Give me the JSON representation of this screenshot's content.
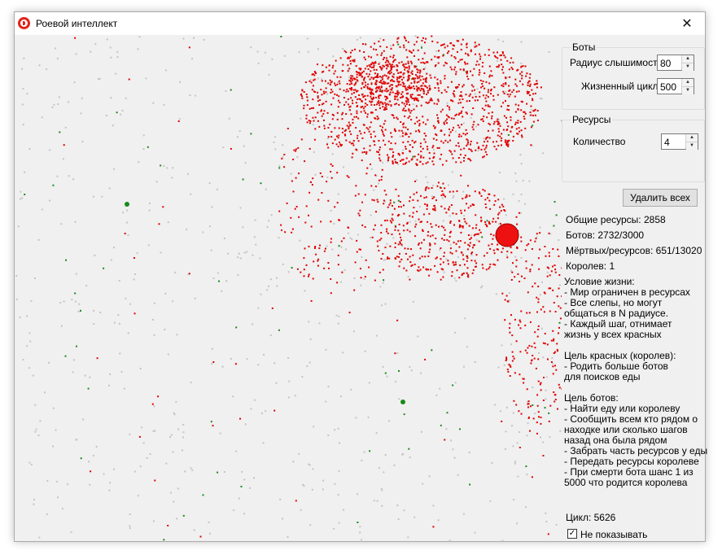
{
  "window": {
    "title": "Роевой интеллект",
    "close_glyph": "✕"
  },
  "bots_group": {
    "title": "Боты",
    "hearing_radius_label": "Радиус слышимости",
    "hearing_radius_value": "80",
    "life_cycle_label": "Жизненный цикл",
    "life_cycle_value": "500"
  },
  "resources_group": {
    "title": "Ресурсы",
    "amount_label": "Количество",
    "amount_value": "4"
  },
  "delete_all_button": "Удалить всех",
  "stats": {
    "total_resources": "Общие ресурсы: 2858",
    "bots": "Ботов: 2732/3000",
    "dead_resources": "Мёртвых/ресурсов: 651/13020",
    "queens": "Королев: 1"
  },
  "description": [
    "Условие жизни:",
    " - Мир ограничен в ресурсах",
    " - Все слепы, но могут",
    "общаться в N радиусе.",
    " - Каждый шаг, отнимает",
    "жизнь у всех красных",
    "",
    "Цель красных (королев):",
    " - Родить больше ботов",
    "для поисков еды",
    "",
    "Цель ботов:",
    " - Найти еду или королеву",
    " - Сообщить всем кто рядом о",
    "находке или сколько шагов",
    "назад она была рядом",
    " - Забрать часть ресурсов у еды",
    " - Передать ресурсы королеве",
    " - При смерти бота шанс 1 из",
    "5000 что родится королева"
  ],
  "cycle": "Цикл: 5626",
  "hide_checkbox": {
    "label": "Не показывать",
    "checked": true,
    "glyph": "✓"
  },
  "colors": {
    "bot": "#e00000",
    "queen": "#ee1111",
    "resource": "#1a8a1a",
    "dead": "#c4c4c4"
  },
  "icons": {
    "app": "app-logo-icon",
    "close": "close-icon",
    "spin_up": "▲",
    "spin_down": "▼"
  }
}
